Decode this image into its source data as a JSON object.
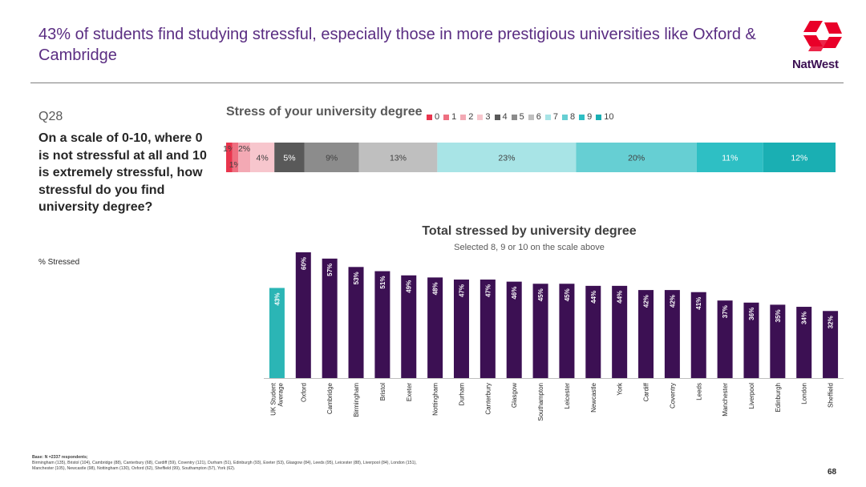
{
  "headline": "43% of students find studying stressful, especially those in more prestigious universities like Oxford & Cambridge",
  "brand": "NatWest",
  "question": {
    "number": "Q28",
    "text": "On a scale of 0-10, where 0 is not stressful at all and 10 is extremely stressful, how stressful do you find university degree?",
    "metric_label": "% Stressed"
  },
  "footnote": {
    "base": "Base: N =2337 respondents;",
    "line1": "Birmingham (135), Bristol (104), Cambridge (88), Canterbury (68), Cardiff (59), Coventry (121), Durham (51), Edinburgh (93), Exeter (53), Glasgow (84), Leeds (95), Leicester (88), Liverpool (84), London (151),",
    "line2": "Manchester (105), Newcastle (98), Nottingham (130), Oxford (62), Sheffield (99), Southampton (57), York (62)."
  },
  "page_number": "68",
  "colors": {
    "title_purple": "#5a2d82",
    "bar_purple": "#3c1053",
    "bar_teal": "#2bb5b5",
    "brand_red": "#e90029"
  },
  "chart_data": [
    {
      "type": "bar",
      "orientation": "horizontal-stacked",
      "title": "Stress of your university degree",
      "legend_position": "top",
      "categories": [
        "0",
        "1",
        "2",
        "3",
        "4",
        "5",
        "6",
        "7",
        "8",
        "9",
        "10"
      ],
      "values": [
        1,
        1,
        2,
        4,
        5,
        9,
        13,
        23,
        20,
        11,
        12
      ],
      "labels": [
        "1%",
        "1%",
        "2%",
        "4%",
        "5%",
        "9%",
        "13%",
        "23%",
        "20%",
        "11%",
        "12%"
      ],
      "colors": [
        "#e8354d",
        "#ee6f80",
        "#f3a9b4",
        "#f7c6cd",
        "#595959",
        "#8c8c8c",
        "#bfbfbf",
        "#a8e4e6",
        "#66cfd3",
        "#2ebfc4",
        "#1aafb3"
      ],
      "label_colors": [
        "#404040",
        "#404040",
        "#404040",
        "#404040",
        "#ffffff",
        "#404040",
        "#404040",
        "#404040",
        "#404040",
        "#ffffff",
        "#ffffff"
      ]
    },
    {
      "type": "bar",
      "title": "Total stressed by university degree",
      "subtitle": "Selected 8, 9 or 10 on the scale above",
      "categories": [
        "UK Student Average",
        "Oxford",
        "Cambridge",
        "Birmingham",
        "Bristol",
        "Exeter",
        "Nottingham",
        "Durham",
        "Canterbury",
        "Glasgow",
        "Southampton",
        "Leicester",
        "Newcastle",
        "York",
        "Cardiff",
        "Coventry",
        "Leeds",
        "Manchester",
        "Liverpool",
        "Edinburgh",
        "London",
        "Sheffield"
      ],
      "values": [
        43,
        60,
        57,
        53,
        51,
        49,
        48,
        47,
        47,
        46,
        45,
        45,
        44,
        44,
        42,
        42,
        41,
        37,
        36,
        35,
        34,
        32
      ],
      "labels": [
        "43%",
        "60%",
        "57%",
        "53%",
        "51%",
        "49%",
        "48%",
        "47%",
        "47%",
        "46%",
        "45%",
        "45%",
        "44%",
        "44%",
        "42%",
        "42%",
        "41%",
        "37%",
        "36%",
        "35%",
        "34%",
        "32%"
      ],
      "highlight_index": 0,
      "ylim": [
        0,
        60
      ]
    }
  ]
}
